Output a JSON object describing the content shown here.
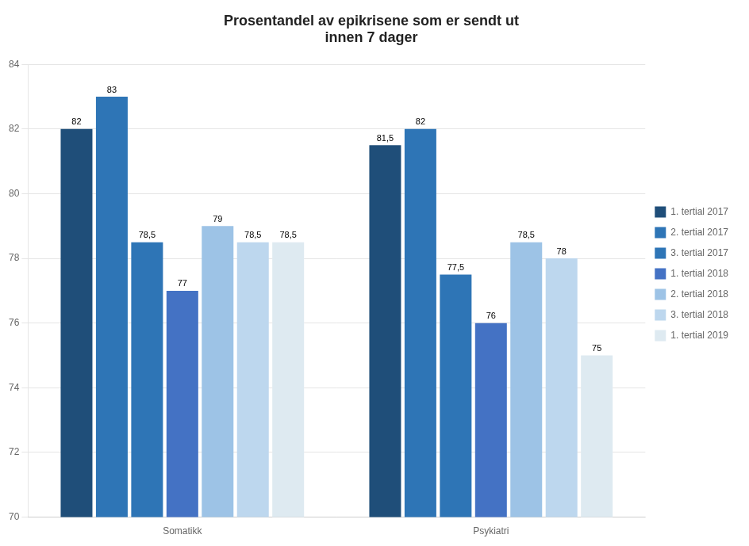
{
  "chart_data": {
    "type": "bar",
    "title": "Prosentandel av epikrisene som er sendt ut\ninnen 7 dager",
    "categories": [
      "Somatikk",
      "Psykiatri"
    ],
    "series": [
      {
        "name": "1. tertial 2017",
        "values": [
          82,
          81.5
        ],
        "value_labels": [
          "82",
          "81,5"
        ],
        "color": "#1F4E79"
      },
      {
        "name": "2. tertial 2017",
        "values": [
          83,
          82
        ],
        "value_labels": [
          "83",
          "82"
        ],
        "color": "#2E75B6"
      },
      {
        "name": "3. tertial 2017",
        "values": [
          78.5,
          77.5
        ],
        "value_labels": [
          "78,5",
          "77,5"
        ],
        "color": "#2E75B6"
      },
      {
        "name": "1. tertial 2018",
        "values": [
          77,
          76
        ],
        "value_labels": [
          "77",
          "76"
        ],
        "color": "#4472C4"
      },
      {
        "name": "2. tertial 2018",
        "values": [
          79,
          78.5
        ],
        "value_labels": [
          "79",
          "78,5"
        ],
        "color": "#9DC3E6"
      },
      {
        "name": "3. tertial 2018",
        "values": [
          78.5,
          78
        ],
        "value_labels": [
          "78,5",
          "78"
        ],
        "color": "#BDD7EE"
      },
      {
        "name": "1. tertial 2019",
        "values": [
          78.5,
          75
        ],
        "value_labels": [
          "78,5",
          "75"
        ],
        "color": "#DEEAF1"
      }
    ],
    "ylim": [
      70,
      84
    ],
    "yticks": [
      70,
      72,
      74,
      76,
      78,
      80,
      82,
      84
    ],
    "grid": true,
    "legend": "right",
    "data_labels": true
  }
}
